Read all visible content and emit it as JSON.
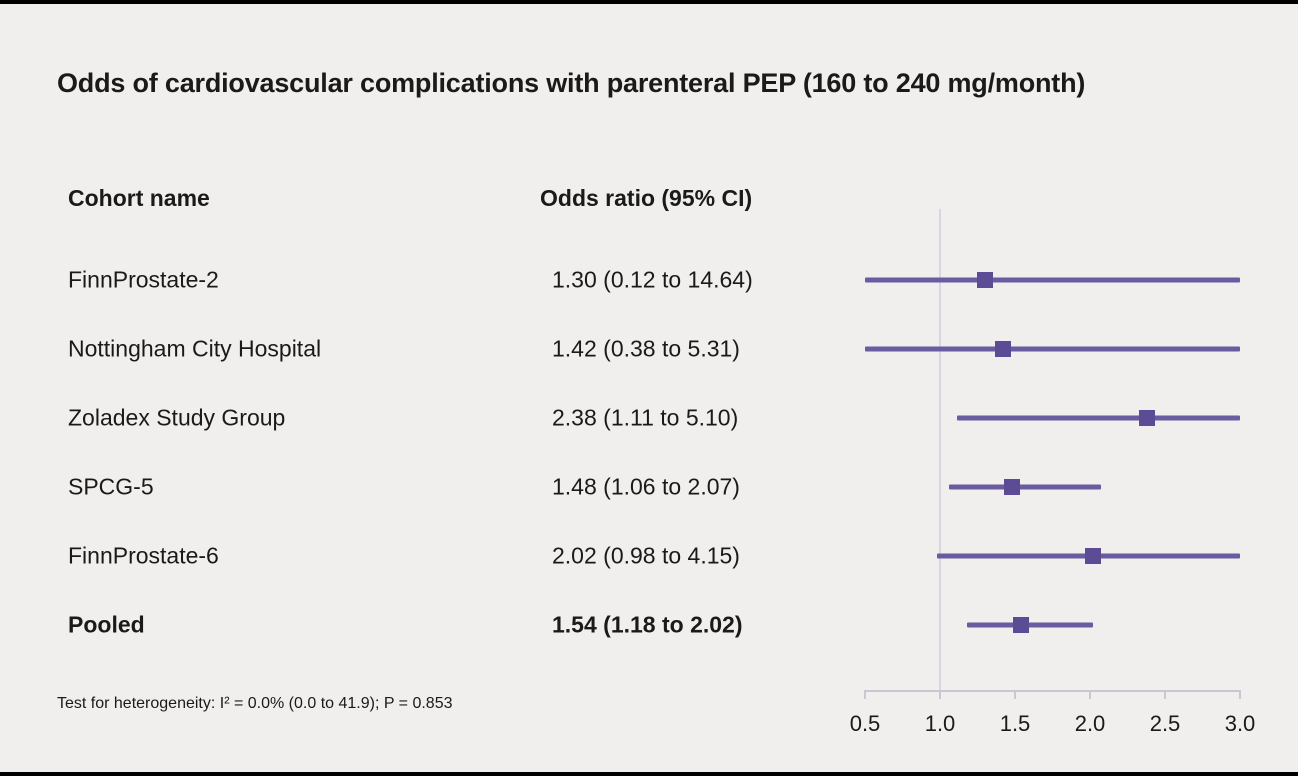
{
  "title": "Odds of cardiovascular complications with parenteral PEP (160 to 240 mg/month)",
  "columns": {
    "cohort": "Cohort name",
    "or": "Odds ratio (95% CI)"
  },
  "footnote": "Test for heterogeneity: I² = 0.0% (0.0 to 41.9); P = 0.853",
  "colors": {
    "background": "#f0efed",
    "text": "#1a1a1a",
    "ci_line": "#6b5ba0",
    "marker": "#5c4b95",
    "reference_line": "#d8d6e1",
    "axis": "#c9c8d2"
  },
  "chart_data": {
    "type": "forest",
    "title": "Odds of cardiovascular complications with parenteral PEP (160 to 240 mg/month)",
    "xlabel": "Odds ratio",
    "xlim": [
      0.5,
      3.0
    ],
    "x_ticks": [
      "0.5",
      "1.0",
      "1.5",
      "2.0",
      "2.5",
      "3.0"
    ],
    "x_tick_values": [
      0.5,
      1.0,
      1.5,
      2.0,
      2.5,
      3.0
    ],
    "reference_line": 1.0,
    "grid": false,
    "rows": [
      {
        "label": "FinnProstate-2",
        "or_text": "1.30 (0.12 to 14.64)",
        "estimate": 1.3,
        "ci_low": 0.12,
        "ci_high": 14.64,
        "bold": false
      },
      {
        "label": "Nottingham City Hospital",
        "or_text": "1.42 (0.38 to 5.31)",
        "estimate": 1.42,
        "ci_low": 0.38,
        "ci_high": 5.31,
        "bold": false
      },
      {
        "label": "Zoladex Study Group",
        "or_text": "2.38 (1.11 to 5.10)",
        "estimate": 2.38,
        "ci_low": 1.11,
        "ci_high": 5.1,
        "bold": false
      },
      {
        "label": "SPCG-5",
        "or_text": "1.48 (1.06 to 2.07)",
        "estimate": 1.48,
        "ci_low": 1.06,
        "ci_high": 2.07,
        "bold": false
      },
      {
        "label": "FinnProstate-6",
        "or_text": "2.02 (0.98 to 4.15)",
        "estimate": 2.02,
        "ci_low": 0.98,
        "ci_high": 4.15,
        "bold": false
      },
      {
        "label": "Pooled",
        "or_text": "1.54 (1.18 to 2.02)",
        "estimate": 1.54,
        "ci_low": 1.18,
        "ci_high": 2.02,
        "bold": true
      }
    ]
  }
}
